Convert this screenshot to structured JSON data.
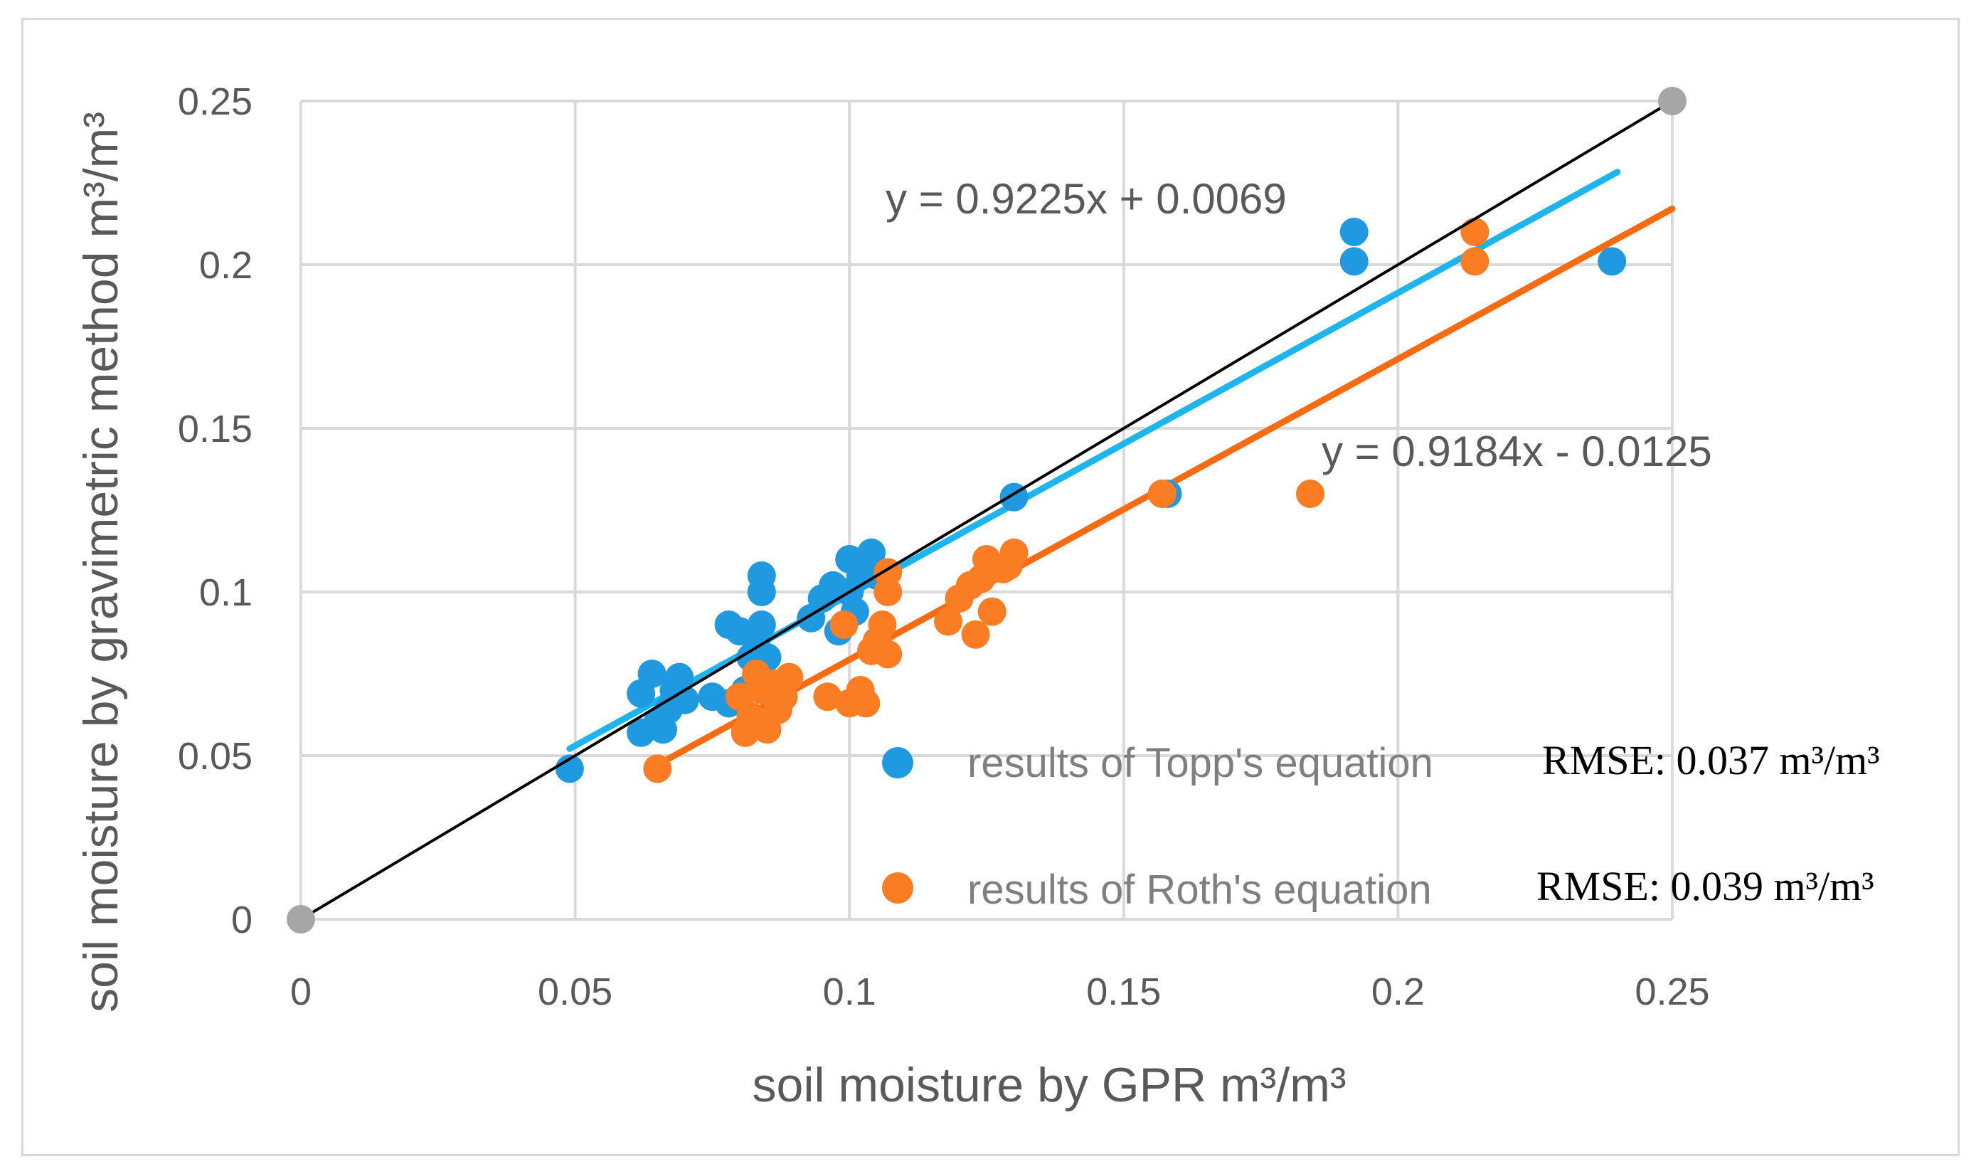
{
  "chart_data": {
    "type": "scatter",
    "xlabel": "soil moisture by GPR m³/m³",
    "ylabel": "soil moisture by gravimetric method m³/m³",
    "xlim": [
      0,
      0.25
    ],
    "ylim": [
      0,
      0.25
    ],
    "x_ticks": [
      "0",
      "0.05",
      "0.1",
      "0.15",
      "0.2",
      "0.25"
    ],
    "y_ticks": [
      "0",
      "0.05",
      "0.1",
      "0.15",
      "0.2",
      "0.25"
    ],
    "grid": true,
    "legend_position": "bottom-right",
    "series": [
      {
        "name": "results of Topp's equation",
        "color": "#1f9ae0",
        "rmse_label": "RMSE: 0.037 m³/m³",
        "trendline": {
          "equation": "y = 0.9225x + 0.0069",
          "slope": 0.9225,
          "intercept": 0.0069,
          "x_range": [
            0.049,
            0.24
          ],
          "color": "#1cb5ee"
        },
        "points": [
          [
            0.049,
            0.046
          ],
          [
            0.062,
            0.069
          ],
          [
            0.062,
            0.057
          ],
          [
            0.064,
            0.075
          ],
          [
            0.065,
            0.06
          ],
          [
            0.066,
            0.058
          ],
          [
            0.067,
            0.064
          ],
          [
            0.068,
            0.07
          ],
          [
            0.069,
            0.074
          ],
          [
            0.07,
            0.067
          ],
          [
            0.075,
            0.068
          ],
          [
            0.078,
            0.066
          ],
          [
            0.078,
            0.09
          ],
          [
            0.08,
            0.088
          ],
          [
            0.081,
            0.07
          ],
          [
            0.082,
            0.08
          ],
          [
            0.083,
            0.085
          ],
          [
            0.084,
            0.09
          ],
          [
            0.084,
            0.1
          ],
          [
            0.084,
            0.105
          ],
          [
            0.085,
            0.08
          ],
          [
            0.093,
            0.092
          ],
          [
            0.095,
            0.098
          ],
          [
            0.097,
            0.102
          ],
          [
            0.098,
            0.088
          ],
          [
            0.1,
            0.11
          ],
          [
            0.1,
            0.1
          ],
          [
            0.101,
            0.094
          ],
          [
            0.102,
            0.105
          ],
          [
            0.104,
            0.112
          ],
          [
            0.105,
            0.105
          ],
          [
            0.13,
            0.129
          ],
          [
            0.158,
            0.13
          ],
          [
            0.192,
            0.21
          ],
          [
            0.192,
            0.201
          ],
          [
            0.239,
            0.201
          ]
        ]
      },
      {
        "name": "results of Roth's equation",
        "color": "#fa7d24",
        "rmse_label": "RMSE: 0.039 m³/m³",
        "trendline": {
          "equation": "y = 0.9184x - 0.0125",
          "slope": 0.9184,
          "intercept": -0.0125,
          "x_range": [
            0.065,
            0.25
          ],
          "color": "#fa6a10"
        },
        "points": [
          [
            0.065,
            0.046
          ],
          [
            0.08,
            0.068
          ],
          [
            0.081,
            0.057
          ],
          [
            0.082,
            0.062
          ],
          [
            0.083,
            0.075
          ],
          [
            0.084,
            0.07
          ],
          [
            0.085,
            0.058
          ],
          [
            0.086,
            0.072
          ],
          [
            0.087,
            0.064
          ],
          [
            0.088,
            0.068
          ],
          [
            0.089,
            0.074
          ],
          [
            0.096,
            0.068
          ],
          [
            0.099,
            0.09
          ],
          [
            0.1,
            0.066
          ],
          [
            0.102,
            0.07
          ],
          [
            0.103,
            0.066
          ],
          [
            0.104,
            0.082
          ],
          [
            0.105,
            0.085
          ],
          [
            0.106,
            0.09
          ],
          [
            0.107,
            0.1
          ],
          [
            0.107,
            0.106
          ],
          [
            0.107,
            0.081
          ],
          [
            0.118,
            0.091
          ],
          [
            0.12,
            0.098
          ],
          [
            0.122,
            0.102
          ],
          [
            0.123,
            0.087
          ],
          [
            0.124,
            0.104
          ],
          [
            0.125,
            0.11
          ],
          [
            0.126,
            0.094
          ],
          [
            0.128,
            0.107
          ],
          [
            0.129,
            0.108
          ],
          [
            0.13,
            0.112
          ],
          [
            0.157,
            0.13
          ],
          [
            0.184,
            0.13
          ],
          [
            0.214,
            0.21
          ],
          [
            0.214,
            0.201
          ]
        ]
      }
    ],
    "reference_line": {
      "from": [
        0,
        0
      ],
      "to": [
        0.25,
        0.25
      ],
      "color": "#000000",
      "endpoint_color": "#a6a6a6"
    }
  }
}
